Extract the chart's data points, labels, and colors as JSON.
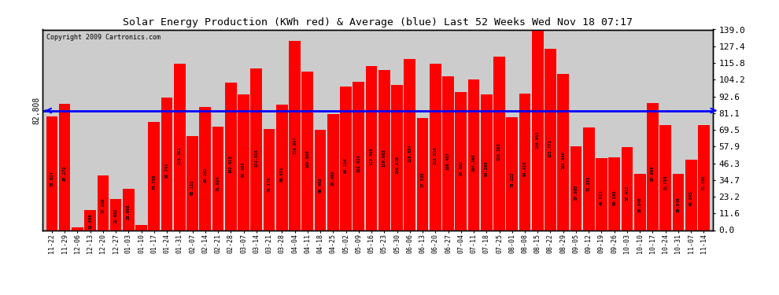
{
  "title": "Solar Energy Production (KWh red) & Average (blue) Last 52 Weeks Wed Nov 18 07:17",
  "copyright": "Copyright 2009 Cartronics.com",
  "average": 82.808,
  "ylim_max": 139.0,
  "yticks_right": [
    0.0,
    11.6,
    23.2,
    34.7,
    46.3,
    57.9,
    69.5,
    81.1,
    92.6,
    104.2,
    115.8,
    127.4,
    139.0
  ],
  "bar_color": "#ff0000",
  "avg_line_color": "#0000ff",
  "bg_color": "#ffffff",
  "plot_bg_color": "#cccccc",
  "grid_color": "#ffffff",
  "categories": [
    "11-22",
    "11-29",
    "12-06",
    "12-13",
    "12-20",
    "12-27",
    "01-03",
    "01-10",
    "01-17",
    "01-24",
    "01-31",
    "02-07",
    "02-14",
    "02-21",
    "02-28",
    "03-07",
    "03-14",
    "03-21",
    "03-28",
    "04-04",
    "04-11",
    "04-18",
    "04-25",
    "05-02",
    "05-09",
    "05-16",
    "05-23",
    "05-30",
    "06-06",
    "06-13",
    "06-20",
    "06-27",
    "07-04",
    "07-11",
    "07-18",
    "07-25",
    "08-01",
    "08-08",
    "08-15",
    "08-22",
    "08-29",
    "09-05",
    "09-12",
    "09-19",
    "09-26",
    "10-03",
    "10-10",
    "10-17",
    "10-24",
    "10-31",
    "11-07",
    "11-14"
  ],
  "values": [
    78.824,
    87.272,
    1.65,
    13.888,
    37.639,
    21.682,
    28.698,
    3.45,
    74.705,
    91.761,
    115.351,
    65.111,
    85.182,
    71.924,
    102.023,
    93.885,
    111.818,
    70.178,
    86.671,
    130.987,
    109.86,
    69.463,
    80.49,
    99.22,
    102.624,
    113.496,
    110.903,
    100.53,
    118.654,
    77.538,
    115.516,
    106.407,
    95.861,
    104.26,
    94.205,
    120.395,
    78.222,
    94.416,
    138.963,
    125.771,
    108.086,
    57.985,
    71.255,
    49.811,
    50.165,
    57.412,
    38.846,
    87.99,
    72.758,
    38.846,
    48.845,
    72.758
  ]
}
